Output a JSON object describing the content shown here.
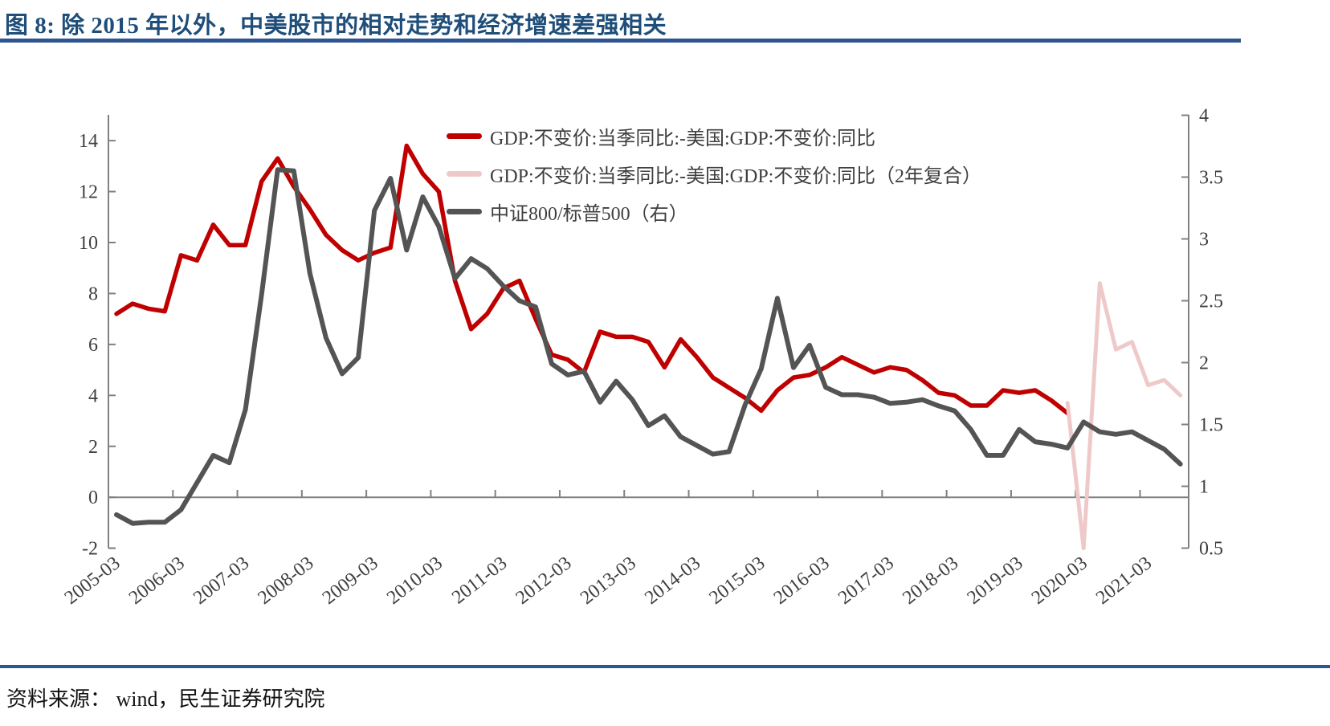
{
  "header": {
    "title": "图 8: 除 2015 年以外，中美股市的相对走势和经济增速差强相关"
  },
  "footer": {
    "source": "资料来源：  wind，民生证券研究院"
  },
  "chart_data": {
    "type": "line",
    "x_frequency": "quarterly",
    "x_start": "2005-03",
    "x_labels": [
      "2005-03",
      "2006-03",
      "2007-03",
      "2008-03",
      "2009-03",
      "2010-03",
      "2011-03",
      "2012-03",
      "2013-03",
      "2014-03",
      "2015-03",
      "2016-03",
      "2017-03",
      "2018-03",
      "2019-03",
      "2020-03",
      "2021-03"
    ],
    "left_axis": {
      "ticks": [
        "-2",
        "0",
        "2",
        "4",
        "6",
        "8",
        "10",
        "12",
        "14"
      ],
      "min": -2,
      "max": 15,
      "zero_line": true
    },
    "right_axis": {
      "ticks": [
        "0.5",
        "1",
        "1.5",
        "2",
        "2.5",
        "3",
        "3.5",
        "4"
      ],
      "min": 0.5,
      "max": 4
    },
    "grid": false,
    "legend_position": "top-center-inside",
    "series": [
      {
        "name": "GDP:不变价:当季同比:-美国:GDP:不变价:同比",
        "color": "#c00000",
        "axis": "left",
        "start_index": 0,
        "values": [
          7.2,
          7.6,
          7.4,
          7.3,
          9.5,
          9.3,
          10.7,
          9.9,
          9.9,
          12.4,
          13.3,
          12.2,
          11.3,
          10.3,
          9.7,
          9.3,
          9.6,
          9.8,
          13.8,
          12.7,
          12.0,
          8.5,
          6.6,
          7.2,
          8.2,
          8.5,
          7.0,
          5.6,
          5.4,
          4.9,
          6.5,
          6.3,
          6.3,
          6.1,
          5.1,
          6.2,
          5.5,
          4.7,
          4.3,
          3.9,
          3.4,
          4.2,
          4.7,
          4.8,
          5.1,
          5.5,
          5.2,
          4.9,
          5.1,
          5.0,
          4.6,
          4.1,
          4.0,
          3.6,
          3.6,
          4.2,
          4.1,
          4.2,
          3.8,
          3.3
        ]
      },
      {
        "name": "GDP:不变价:当季同比:-美国:GDP:不变价:同比（2年复合）",
        "color": "#efc9c9",
        "axis": "left",
        "start_index": 59,
        "values": [
          3.7,
          -2.0,
          8.4,
          5.8,
          6.1,
          4.4,
          4.6,
          4.0
        ]
      },
      {
        "name": "中证800/标普500（右）",
        "color": "#545454",
        "axis": "right",
        "start_index": 0,
        "values": [
          0.77,
          0.7,
          0.71,
          0.71,
          0.81,
          1.03,
          1.25,
          1.19,
          1.62,
          2.55,
          3.56,
          3.55,
          2.72,
          2.2,
          1.91,
          2.04,
          3.23,
          3.49,
          2.91,
          3.34,
          3.1,
          2.68,
          2.84,
          2.76,
          2.62,
          2.5,
          2.45,
          1.99,
          1.9,
          1.93,
          1.68,
          1.85,
          1.7,
          1.49,
          1.57,
          1.4,
          1.33,
          1.26,
          1.28,
          1.66,
          1.95,
          2.52,
          1.96,
          2.14,
          1.8,
          1.74,
          1.74,
          1.72,
          1.67,
          1.68,
          1.7,
          1.65,
          1.61,
          1.46,
          1.25,
          1.25,
          1.46,
          1.36,
          1.34,
          1.31,
          1.52,
          1.44,
          1.42,
          1.44,
          1.37,
          1.3,
          1.18
        ]
      }
    ]
  }
}
